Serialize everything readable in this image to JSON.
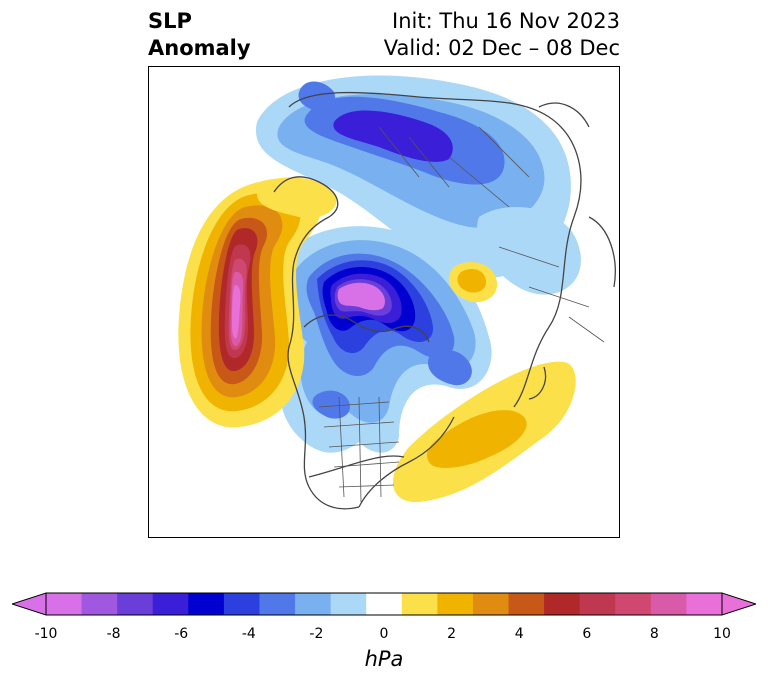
{
  "header": {
    "title_line1": "SLP",
    "title_line2": "Anomaly",
    "init_text": "Init: Thu 16 Nov 2023",
    "valid_text": "Valid: 02 Dec – 08 Dec"
  },
  "map": {
    "projection": "north-polar-stereographic",
    "field": "sea level pressure anomaly"
  },
  "colorbar": {
    "unit": "hPa",
    "extend": "both",
    "ticks": [
      "-10",
      "-8",
      "-6",
      "-4",
      "-2",
      "0",
      "2",
      "4",
      "6",
      "8",
      "10"
    ],
    "levels": [
      -10,
      -9,
      -8,
      -7,
      -6,
      -5,
      -4,
      -3,
      -2,
      -1,
      1,
      2,
      3,
      4,
      5,
      6,
      7,
      8,
      9,
      10
    ],
    "colors": [
      "#d870e8",
      "#a058e0",
      "#6a3ed8",
      "#3a1ed8",
      "#0000d0",
      "#2c40e0",
      "#5078e8",
      "#78b0f0",
      "#acd8f8",
      "#ffffff",
      "#fce04a",
      "#f0b400",
      "#e08c10",
      "#c85818",
      "#b02828",
      "#c03850",
      "#d04870",
      "#d85aa8",
      "#e870d8"
    ]
  }
}
